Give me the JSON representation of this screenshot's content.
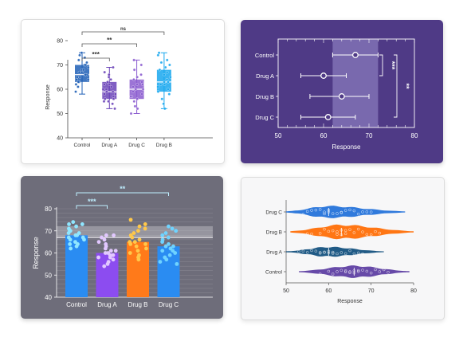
{
  "chart_data": [
    {
      "type": "box",
      "categories": [
        "Control",
        "Drug A",
        "Drug C",
        "Drug B"
      ],
      "colors": [
        "#1f5fb6",
        "#6a43b8",
        "#8b5ccf",
        "#18a7ee"
      ],
      "ylabel": "Response",
      "ylim": [
        40,
        80
      ],
      "yticks": [
        40,
        50,
        60,
        70,
        80
      ],
      "boxes": [
        {
          "min": 58,
          "q1": 63,
          "median": 66,
          "q3": 70,
          "max": 75
        },
        {
          "min": 52,
          "q1": 56,
          "median": 59,
          "q3": 63,
          "max": 69
        },
        {
          "min": 50,
          "q1": 56,
          "median": 60,
          "q3": 64,
          "max": 72
        },
        {
          "min": 52,
          "q1": 59,
          "median": 63,
          "q3": 68,
          "max": 75
        }
      ],
      "points": [
        [
          59,
          61,
          62,
          63,
          63,
          64,
          64,
          65,
          65,
          66,
          66,
          66,
          67,
          67,
          68,
          68,
          69,
          70,
          70,
          71,
          72,
          73,
          74,
          75
        ],
        [
          52,
          54,
          55,
          55,
          56,
          56,
          57,
          58,
          58,
          59,
          59,
          60,
          60,
          61,
          62,
          62,
          63,
          64,
          65,
          66,
          67,
          69
        ],
        [
          50,
          52,
          53,
          55,
          56,
          57,
          57,
          58,
          59,
          60,
          60,
          61,
          62,
          62,
          63,
          64,
          65,
          66,
          68,
          70,
          72
        ],
        [
          52,
          54,
          56,
          58,
          59,
          60,
          61,
          62,
          62,
          63,
          63,
          64,
          65,
          66,
          67,
          68,
          69,
          70,
          71,
          72,
          74,
          75
        ]
      ],
      "brackets": [
        {
          "from": "Control",
          "to": "Drug A",
          "label": "***"
        },
        {
          "from": "Control",
          "to": "Drug C",
          "label": "**"
        },
        {
          "from": "Control",
          "to": "Drug B",
          "label": "ns"
        }
      ]
    },
    {
      "type": "scatter",
      "subtype": "forest",
      "categories": [
        "Control",
        "Drug A",
        "Drug B",
        "Drug C"
      ],
      "means": [
        67,
        60,
        64,
        61
      ],
      "ci": [
        [
          62,
          72
        ],
        [
          55,
          65
        ],
        [
          57,
          70
        ],
        [
          55,
          67
        ]
      ],
      "xlabel": "Response",
      "xlim": [
        50,
        80
      ],
      "xticks": [
        50,
        60,
        70,
        80
      ],
      "reference_band": [
        62,
        72
      ],
      "brackets": [
        {
          "from": "Control",
          "to": "Drug A",
          "label": "***"
        },
        {
          "from": "Control",
          "to": "Drug C",
          "label": "**"
        }
      ]
    },
    {
      "type": "bar",
      "categories": [
        "Control",
        "Drug A",
        "Drug B",
        "Drug C"
      ],
      "values": [
        68,
        60,
        65,
        63
      ],
      "colors": [
        "#2a8cf2",
        "#8c4cf0",
        "#ff7a1a",
        "#2a8cf2"
      ],
      "point_colors": [
        "#8fe6ff",
        "#e2c8ff",
        "#ffc84a",
        "#6fd3ff"
      ],
      "ylabel": "Response",
      "ylim": [
        40,
        80
      ],
      "yticks": [
        40,
        50,
        60,
        70,
        80
      ],
      "reference_band": [
        67,
        72
      ],
      "points": [
        [
          62,
          63,
          64,
          64,
          65,
          66,
          66,
          67,
          67,
          68,
          68,
          69,
          69,
          70,
          70,
          71,
          72,
          73,
          73,
          74
        ],
        [
          54,
          55,
          56,
          57,
          58,
          58,
          59,
          59,
          60,
          60,
          61,
          61,
          62,
          63,
          64,
          65,
          66,
          67,
          68,
          68
        ],
        [
          57,
          58,
          59,
          60,
          61,
          62,
          63,
          64,
          64,
          65,
          65,
          66,
          67,
          68,
          69,
          70,
          71,
          72,
          73,
          75
        ],
        [
          55,
          56,
          57,
          58,
          59,
          60,
          61,
          61,
          62,
          63,
          63,
          64,
          65,
          66,
          67,
          68,
          69,
          70,
          71,
          72
        ]
      ],
      "brackets": [
        {
          "from": "Control",
          "to": "Drug A",
          "label": "***"
        },
        {
          "from": "Control",
          "to": "Drug C",
          "label": "**"
        }
      ]
    },
    {
      "type": "violin",
      "categories": [
        "Drug C",
        "Drug B",
        "Drug A",
        "Control"
      ],
      "colors": [
        "#1e6fd9",
        "#ff6a00",
        "#0e4d7c",
        "#5a3ba1"
      ],
      "centers": [
        60,
        63,
        60,
        66
      ],
      "ranges": [
        [
          50,
          78
        ],
        [
          51,
          80
        ],
        [
          50,
          73
        ],
        [
          53,
          79
        ]
      ],
      "widths": [
        0.55,
        0.65,
        0.45,
        0.55
      ],
      "xlabel": "Response",
      "xlim": [
        50,
        80
      ],
      "xticks": [
        50,
        60,
        70,
        80
      ],
      "points": [
        [
          54,
          55,
          56,
          57,
          58,
          59,
          59,
          60,
          60,
          61,
          62,
          63,
          63,
          64,
          65,
          66,
          67,
          68,
          69,
          70
        ],
        [
          55,
          56,
          58,
          59,
          60,
          61,
          62,
          62,
          63,
          63,
          64,
          64,
          65,
          66,
          67,
          68,
          69,
          70,
          71,
          72
        ],
        [
          53,
          54,
          55,
          56,
          57,
          58,
          58,
          59,
          59,
          60,
          60,
          61,
          61,
          62,
          63,
          64,
          65,
          66,
          67,
          68
        ],
        [
          58,
          60,
          61,
          62,
          63,
          64,
          64,
          65,
          65,
          66,
          66,
          67,
          67,
          68,
          69,
          70,
          71,
          72,
          73,
          74
        ]
      ]
    }
  ]
}
